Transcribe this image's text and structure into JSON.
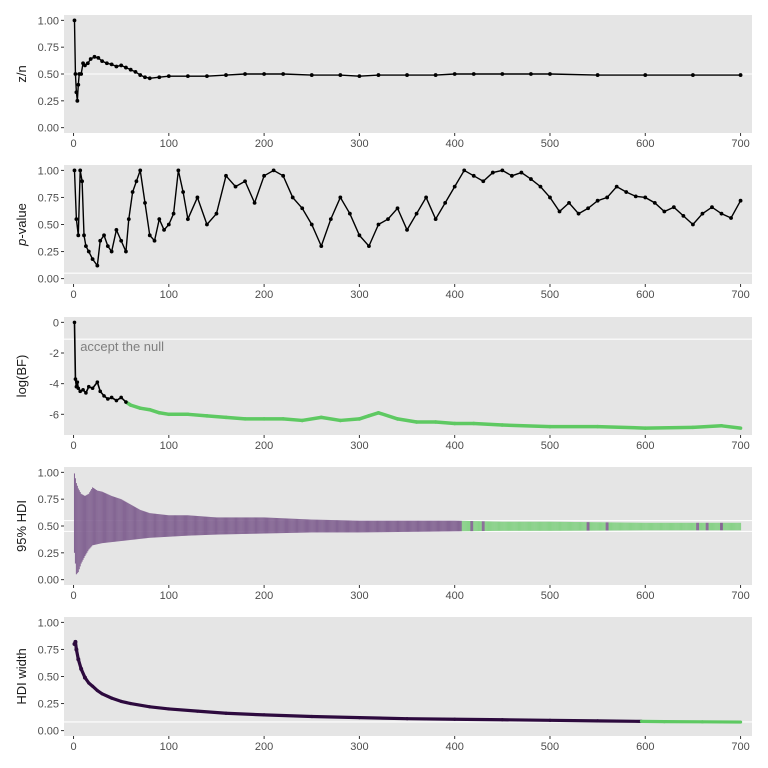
{
  "chart_data": [
    {
      "id": "zn",
      "type": "line",
      "ylabel": "z/n",
      "ylabel_italic_part": "",
      "ylabel_rest": "",
      "xlim": [
        -10,
        712
      ],
      "ylim": [
        -0.05,
        1.05
      ],
      "x_ticks": [
        0,
        100,
        200,
        300,
        400,
        500,
        600,
        700
      ],
      "x_tick_labels": [
        "0",
        "100",
        "200",
        "300",
        "400",
        "500",
        "600",
        "700"
      ],
      "y_ticks": [
        0.0,
        0.25,
        0.5,
        0.75,
        1.0
      ],
      "y_tick_labels": [
        "0.00",
        "0.25",
        "0.50",
        "0.75",
        "1.00"
      ],
      "reference_line": 0.5,
      "line_color": "#000000",
      "points": true,
      "grid": "white major lines",
      "series": [
        {
          "x": [
            1,
            2,
            3,
            4,
            5,
            6,
            8,
            10,
            12,
            15,
            18,
            22,
            26,
            30,
            35,
            40,
            45,
            50,
            55,
            60,
            65,
            70,
            75,
            80,
            90,
            100,
            120,
            140,
            160,
            180,
            200,
            220,
            250,
            280,
            300,
            320,
            350,
            380,
            400,
            420,
            450,
            480,
            500,
            550,
            600,
            650,
            700
          ],
          "values": [
            1.0,
            0.5,
            0.33,
            0.25,
            0.4,
            0.5,
            0.5,
            0.6,
            0.58,
            0.6,
            0.64,
            0.66,
            0.65,
            0.62,
            0.6,
            0.59,
            0.57,
            0.58,
            0.56,
            0.54,
            0.52,
            0.49,
            0.47,
            0.46,
            0.47,
            0.48,
            0.48,
            0.48,
            0.49,
            0.5,
            0.5,
            0.5,
            0.49,
            0.49,
            0.48,
            0.49,
            0.49,
            0.49,
            0.5,
            0.5,
            0.5,
            0.5,
            0.5,
            0.49,
            0.49,
            0.49,
            0.49
          ]
        }
      ]
    },
    {
      "id": "pvalue",
      "type": "line",
      "ylabel": "",
      "ylabel_italic_part": "p",
      "ylabel_rest": "-value",
      "xlim": [
        -10,
        712
      ],
      "ylim": [
        -0.05,
        1.05
      ],
      "x_ticks": [
        0,
        100,
        200,
        300,
        400,
        500,
        600,
        700
      ],
      "x_tick_labels": [
        "0",
        "100",
        "200",
        "300",
        "400",
        "500",
        "600",
        "700"
      ],
      "y_ticks": [
        0.0,
        0.25,
        0.5,
        0.75,
        1.0
      ],
      "y_tick_labels": [
        "0.00",
        "0.25",
        "0.50",
        "0.75",
        "1.00"
      ],
      "reference_line": 0.05,
      "line_color": "#000000",
      "points": true,
      "grid": "white major lines",
      "series": [
        {
          "x": [
            1,
            3,
            5,
            7,
            9,
            11,
            13,
            16,
            20,
            25,
            28,
            32,
            36,
            40,
            45,
            50,
            55,
            58,
            62,
            66,
            70,
            75,
            80,
            85,
            90,
            95,
            100,
            105,
            110,
            115,
            120,
            130,
            140,
            150,
            160,
            170,
            180,
            190,
            200,
            210,
            220,
            230,
            240,
            250,
            260,
            270,
            280,
            290,
            300,
            310,
            320,
            330,
            340,
            350,
            360,
            370,
            380,
            390,
            400,
            410,
            420,
            430,
            440,
            450,
            460,
            470,
            480,
            490,
            500,
            510,
            520,
            530,
            540,
            550,
            560,
            570,
            580,
            590,
            600,
            610,
            620,
            630,
            640,
            650,
            660,
            670,
            680,
            690,
            700
          ],
          "values": [
            1.0,
            0.55,
            0.4,
            1.0,
            0.9,
            0.4,
            0.3,
            0.25,
            0.18,
            0.12,
            0.35,
            0.4,
            0.3,
            0.25,
            0.45,
            0.35,
            0.25,
            0.55,
            0.8,
            0.9,
            1.0,
            0.7,
            0.4,
            0.35,
            0.55,
            0.45,
            0.5,
            0.6,
            1.0,
            0.8,
            0.55,
            0.75,
            0.5,
            0.6,
            0.95,
            0.85,
            0.9,
            0.7,
            0.95,
            1.0,
            0.95,
            0.75,
            0.65,
            0.5,
            0.3,
            0.55,
            0.75,
            0.6,
            0.4,
            0.3,
            0.5,
            0.55,
            0.65,
            0.45,
            0.6,
            0.75,
            0.55,
            0.7,
            0.85,
            1.0,
            0.95,
            0.9,
            0.98,
            1.0,
            0.95,
            0.98,
            0.92,
            0.85,
            0.75,
            0.62,
            0.7,
            0.6,
            0.65,
            0.72,
            0.75,
            0.85,
            0.8,
            0.76,
            0.75,
            0.7,
            0.62,
            0.66,
            0.58,
            0.5,
            0.6,
            0.66,
            0.6,
            0.56,
            0.72
          ]
        }
      ]
    },
    {
      "id": "logbf",
      "type": "line",
      "ylabel": "log(BF)",
      "ylabel_italic_part": "",
      "ylabel_rest": "",
      "xlim": [
        -10,
        712
      ],
      "ylim": [
        -7.35,
        0.35
      ],
      "x_ticks": [
        0,
        100,
        200,
        300,
        400,
        500,
        600,
        700
      ],
      "x_tick_labels": [
        "0",
        "100",
        "200",
        "300",
        "400",
        "500",
        "600",
        "700"
      ],
      "y_ticks": [
        -6,
        -4,
        -2,
        0
      ],
      "y_tick_labels": [
        "-6",
        "-4",
        "-2",
        "0"
      ],
      "reference_line": -1.1,
      "annotation": {
        "text": "accept the null",
        "x": 7,
        "y": -1.6
      },
      "colors": {
        "undecided": "#000000",
        "accept": "#5ec962"
      },
      "grid": "white major lines",
      "series": [
        {
          "x": [
            1,
            2,
            3,
            4,
            5,
            7,
            10,
            13,
            16,
            20,
            25,
            28,
            32,
            36,
            40,
            45,
            50,
            55,
            60,
            70,
            80,
            90,
            100,
            120,
            140,
            160,
            180,
            200,
            220,
            240,
            260,
            280,
            300,
            310,
            320,
            340,
            360,
            380,
            400,
            420,
            450,
            500,
            550,
            600,
            650,
            680,
            700
          ],
          "values": [
            0.0,
            -3.7,
            -4.2,
            -3.9,
            -4.3,
            -4.5,
            -4.4,
            -4.6,
            -4.2,
            -4.3,
            -3.9,
            -4.5,
            -4.8,
            -5.0,
            -4.9,
            -5.1,
            -4.9,
            -5.2,
            -5.4,
            -5.6,
            -5.7,
            -5.9,
            -6.0,
            -6.0,
            -6.1,
            -6.2,
            -6.3,
            -6.3,
            -6.3,
            -6.4,
            -6.2,
            -6.4,
            -6.3,
            -6.1,
            -5.9,
            -6.3,
            -6.5,
            -6.5,
            -6.6,
            -6.6,
            -6.7,
            -6.8,
            -6.8,
            -6.9,
            -6.85,
            -6.75,
            -6.9
          ],
          "decision": [
            "undecided",
            "undecided",
            "undecided",
            "undecided",
            "undecided",
            "undecided",
            "undecided",
            "undecided",
            "undecided",
            "undecided",
            "undecided",
            "undecided",
            "undecided",
            "undecided",
            "undecided",
            "undecided",
            "undecided",
            "undecided",
            "accept",
            "accept",
            "accept",
            "accept",
            "accept",
            "accept",
            "accept",
            "accept",
            "accept",
            "accept",
            "accept",
            "accept",
            "accept",
            "accept",
            "accept",
            "accept",
            "accept",
            "accept",
            "accept",
            "accept",
            "accept",
            "accept",
            "accept",
            "accept",
            "accept",
            "accept",
            "accept",
            "accept",
            "accept"
          ]
        }
      ]
    },
    {
      "id": "hdi",
      "type": "area",
      "ylabel": "95% HDI",
      "ylabel_italic_part": "",
      "ylabel_rest": "",
      "xlim": [
        -10,
        712
      ],
      "ylim": [
        -0.05,
        1.05
      ],
      "x_ticks": [
        0,
        100,
        200,
        300,
        400,
        500,
        600,
        700
      ],
      "x_tick_labels": [
        "0",
        "100",
        "200",
        "300",
        "400",
        "500",
        "600",
        "700"
      ],
      "y_ticks": [
        0.0,
        0.25,
        0.5,
        0.75,
        1.0
      ],
      "y_tick_labels": [
        "0.00",
        "0.25",
        "0.50",
        "0.75",
        "1.00"
      ],
      "rope": [
        0.45,
        0.55
      ],
      "colors": {
        "undecided": "#7b5a8c",
        "accept": "#7fcf80"
      },
      "switch_x": 408,
      "purple_stripes_after_switch": [
        418,
        430,
        540,
        560,
        655,
        665,
        680
      ],
      "grid": "white major lines",
      "series": [
        {
          "x": [
            1,
            3,
            5,
            8,
            12,
            16,
            20,
            25,
            30,
            40,
            50,
            60,
            70,
            80,
            100,
            120,
            150,
            200,
            250,
            300,
            350,
            400,
            450,
            500,
            600,
            700
          ],
          "lower": [
            0.25,
            0.05,
            0.07,
            0.15,
            0.22,
            0.28,
            0.32,
            0.33,
            0.34,
            0.35,
            0.36,
            0.37,
            0.38,
            0.39,
            0.4,
            0.41,
            0.42,
            0.43,
            0.44,
            0.44,
            0.445,
            0.45,
            0.455,
            0.455,
            0.46,
            0.46
          ],
          "upper": [
            0.99,
            0.9,
            0.85,
            0.8,
            0.78,
            0.8,
            0.86,
            0.83,
            0.82,
            0.78,
            0.75,
            0.7,
            0.65,
            0.62,
            0.6,
            0.6,
            0.58,
            0.58,
            0.56,
            0.55,
            0.55,
            0.55,
            0.54,
            0.54,
            0.53,
            0.53
          ]
        }
      ]
    },
    {
      "id": "hdiwidth",
      "type": "line",
      "ylabel": "HDI width",
      "ylabel_italic_part": "",
      "ylabel_rest": "",
      "xlim": [
        -10,
        712
      ],
      "ylim": [
        -0.05,
        1.05
      ],
      "x_ticks": [
        0,
        100,
        200,
        300,
        400,
        500,
        600,
        700
      ],
      "x_tick_labels": [
        "0",
        "100",
        "200",
        "300",
        "400",
        "500",
        "600",
        "700"
      ],
      "y_ticks": [
        0.0,
        0.25,
        0.5,
        0.75,
        1.0
      ],
      "y_tick_labels": [
        "0.00",
        "0.25",
        "0.50",
        "0.75",
        "1.00"
      ],
      "reference_line": 0.08,
      "colors": {
        "undecided": "#2d0a3e",
        "accept": "#5ec962"
      },
      "switch_x": 596,
      "grid": "white major lines",
      "series": [
        {
          "x": [
            1,
            2,
            3,
            5,
            8,
            12,
            16,
            20,
            25,
            30,
            40,
            50,
            60,
            80,
            100,
            130,
            160,
            200,
            250,
            300,
            350,
            400,
            450,
            500,
            550,
            596,
            620,
            660,
            700
          ],
          "values": [
            0.8,
            0.82,
            0.75,
            0.66,
            0.57,
            0.49,
            0.44,
            0.41,
            0.37,
            0.34,
            0.3,
            0.27,
            0.25,
            0.22,
            0.2,
            0.18,
            0.16,
            0.145,
            0.13,
            0.12,
            0.11,
            0.105,
            0.1,
            0.095,
            0.09,
            0.085,
            0.083,
            0.081,
            0.079
          ]
        }
      ]
    }
  ]
}
